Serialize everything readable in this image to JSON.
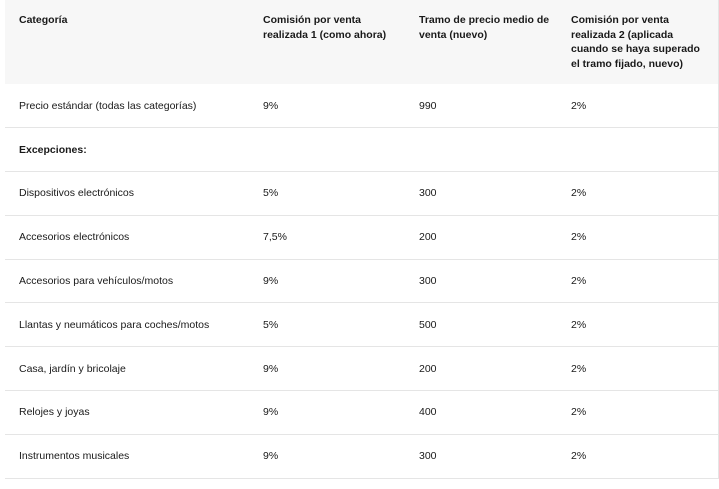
{
  "table": {
    "headers": [
      "Categoría",
      "Comisión por venta realizada 1 (como ahora)",
      "Tramo de precio medio de venta (nuevo)",
      "Comisión por venta realizada 2 (aplicada cuando se haya superado el tramo fijado, nuevo)"
    ],
    "rows": [
      {
        "category": "Precio estándar (todas las categorías)",
        "fee1": "9%",
        "tier": "990",
        "fee2": "2%"
      },
      {
        "category": "Excepciones:",
        "fee1": "",
        "tier": "",
        "fee2": ""
      },
      {
        "category": "Dispositivos electrónicos",
        "fee1": "5%",
        "tier": "300",
        "fee2": "2%"
      },
      {
        "category": "Accesorios electrónicos",
        "fee1": "7,5%",
        "tier": "200",
        "fee2": "2%"
      },
      {
        "category": "Accesorios para vehículos/motos",
        "fee1": "9%",
        "tier": "300",
        "fee2": "2%"
      },
      {
        "category": "Llantas y neumáticos para coches/motos",
        "fee1": "5%",
        "tier": "500",
        "fee2": "2%"
      },
      {
        "category": "Casa, jardín y bricolaje",
        "fee1": "9%",
        "tier": "200",
        "fee2": "2%"
      },
      {
        "category": "Relojes y joyas",
        "fee1": "9%",
        "tier": "400",
        "fee2": "2%"
      },
      {
        "category": "Instrumentos musicales",
        "fee1": "9%",
        "tier": "300",
        "fee2": "2%"
      }
    ]
  }
}
